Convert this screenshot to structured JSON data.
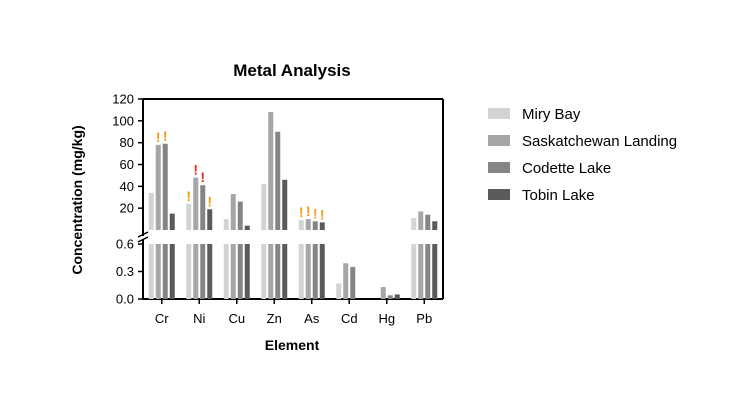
{
  "chart_data": {
    "type": "bar",
    "title": "Metal Analysis",
    "xlabel": "Element",
    "ylabel": "Concentration (mg/kg)",
    "categories": [
      "Cr",
      "Ni",
      "Cu",
      "Zn",
      "As",
      "Cd",
      "Hg",
      "Pb"
    ],
    "y_axis_break": {
      "lower_range": [
        0,
        0.6
      ],
      "lower_ticks": [
        "0.0",
        "0.3",
        "0.6"
      ],
      "upper_range": [
        0,
        120
      ],
      "upper_ticks": [
        "20",
        "40",
        "60",
        "80",
        "100",
        "120"
      ]
    },
    "series": [
      {
        "name": "Miry Bay",
        "color": "#d3d3d3",
        "values": [
          34,
          24,
          10,
          42,
          9,
          0.17,
          null,
          11
        ]
      },
      {
        "name": "Saskatchewan Landing",
        "color": "#a6a6a6",
        "values": [
          78,
          48,
          33,
          108,
          10,
          0.39,
          0.13,
          17
        ]
      },
      {
        "name": "Codette Lake",
        "color": "#858585",
        "values": [
          79,
          41,
          26,
          90,
          8,
          0.35,
          0.04,
          14
        ]
      },
      {
        "name": "Tobin Lake",
        "color": "#5a5a5a",
        "values": [
          15,
          19,
          4,
          46,
          7,
          null,
          0.05,
          8
        ]
      }
    ],
    "annotations": [
      {
        "category": "Cr",
        "series": "Saskatchewan Landing",
        "text": "!",
        "color": "#f39c12"
      },
      {
        "category": "Cr",
        "series": "Codette Lake",
        "text": "!",
        "color": "#f39c12"
      },
      {
        "category": "Ni",
        "series": "Miry Bay",
        "text": "!",
        "color": "#f39c12"
      },
      {
        "category": "Ni",
        "series": "Saskatchewan Landing",
        "text": "!",
        "color": "#e0301e"
      },
      {
        "category": "Ni",
        "series": "Codette Lake",
        "text": "!",
        "color": "#e0301e"
      },
      {
        "category": "Ni",
        "series": "Tobin Lake",
        "text": "!",
        "color": "#f39c12"
      },
      {
        "category": "As",
        "series": "Miry Bay",
        "text": "!",
        "color": "#f39c12"
      },
      {
        "category": "As",
        "series": "Saskatchewan Landing",
        "text": "!",
        "color": "#f39c12"
      },
      {
        "category": "As",
        "series": "Codette Lake",
        "text": "!",
        "color": "#f39c12"
      },
      {
        "category": "As",
        "series": "Tobin Lake",
        "text": "!",
        "color": "#f39c12"
      }
    ],
    "legend_position": "right",
    "grid": false
  }
}
